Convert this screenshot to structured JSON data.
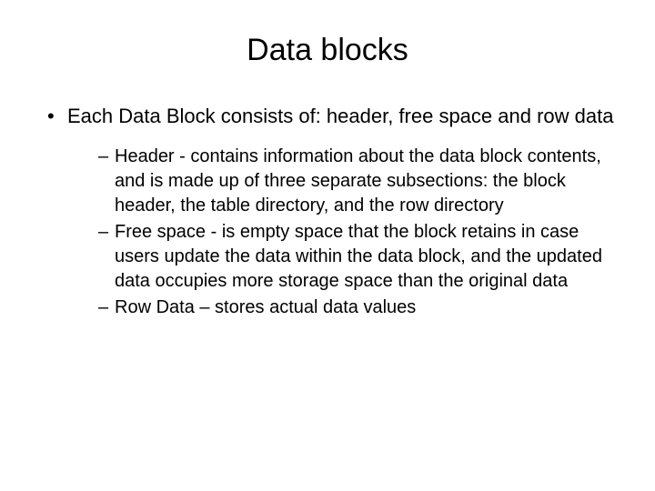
{
  "title": "Data blocks",
  "main_bullet": "Each Data Block consists of: header, free space and row data",
  "sub_bullets": [
    "Header - contains information about the data block contents, and is made up of three separate subsections: the block header, the table directory, and the row directory",
    "Free space - is empty space that the block retains in case users update the data within the data block, and the updated data occupies more storage space than the original data",
    "Row Data – stores actual data values"
  ],
  "colors": {
    "background": "#ffffff",
    "text": "#000000"
  },
  "fonts": {
    "title_size": 34,
    "main_size": 22,
    "sub_size": 20,
    "family": "Arial"
  }
}
